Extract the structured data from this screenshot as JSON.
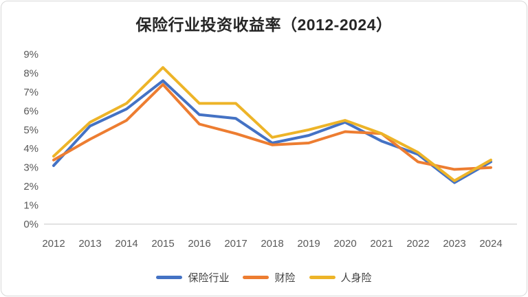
{
  "title": "保险行业投资收益率（2012-2024）",
  "chart_data": {
    "type": "line",
    "title": "保险行业投资收益率（2012-2024）",
    "categories": [
      "2012",
      "2013",
      "2014",
      "2015",
      "2016",
      "2017",
      "2018",
      "2019",
      "2020",
      "2021",
      "2022",
      "2023",
      "2024"
    ],
    "series": [
      {
        "name": "保险行业",
        "color": "#4472C4",
        "values": [
          3.1,
          5.2,
          6.1,
          7.6,
          5.8,
          5.6,
          4.3,
          4.7,
          5.4,
          4.4,
          3.7,
          2.2,
          3.3
        ]
      },
      {
        "name": "财险",
        "color": "#ED7D31",
        "values": [
          3.4,
          4.5,
          5.5,
          7.4,
          5.3,
          4.8,
          4.2,
          4.3,
          4.9,
          4.8,
          3.3,
          2.9,
          3.0
        ]
      },
      {
        "name": "人身险",
        "color": "#EDB428",
        "values": [
          3.6,
          5.4,
          6.4,
          8.3,
          6.4,
          6.4,
          4.6,
          5.0,
          5.5,
          4.8,
          3.8,
          2.3,
          3.4
        ]
      }
    ],
    "yticks": [
      "0%",
      "1%",
      "2%",
      "3%",
      "4%",
      "5%",
      "6%",
      "7%",
      "8%",
      "9%"
    ],
    "ylim": [
      0,
      9
    ],
    "xlabel": "",
    "ylabel": "",
    "grid": false,
    "legend_position": "bottom",
    "baseline_color": "#d9d9d9"
  }
}
